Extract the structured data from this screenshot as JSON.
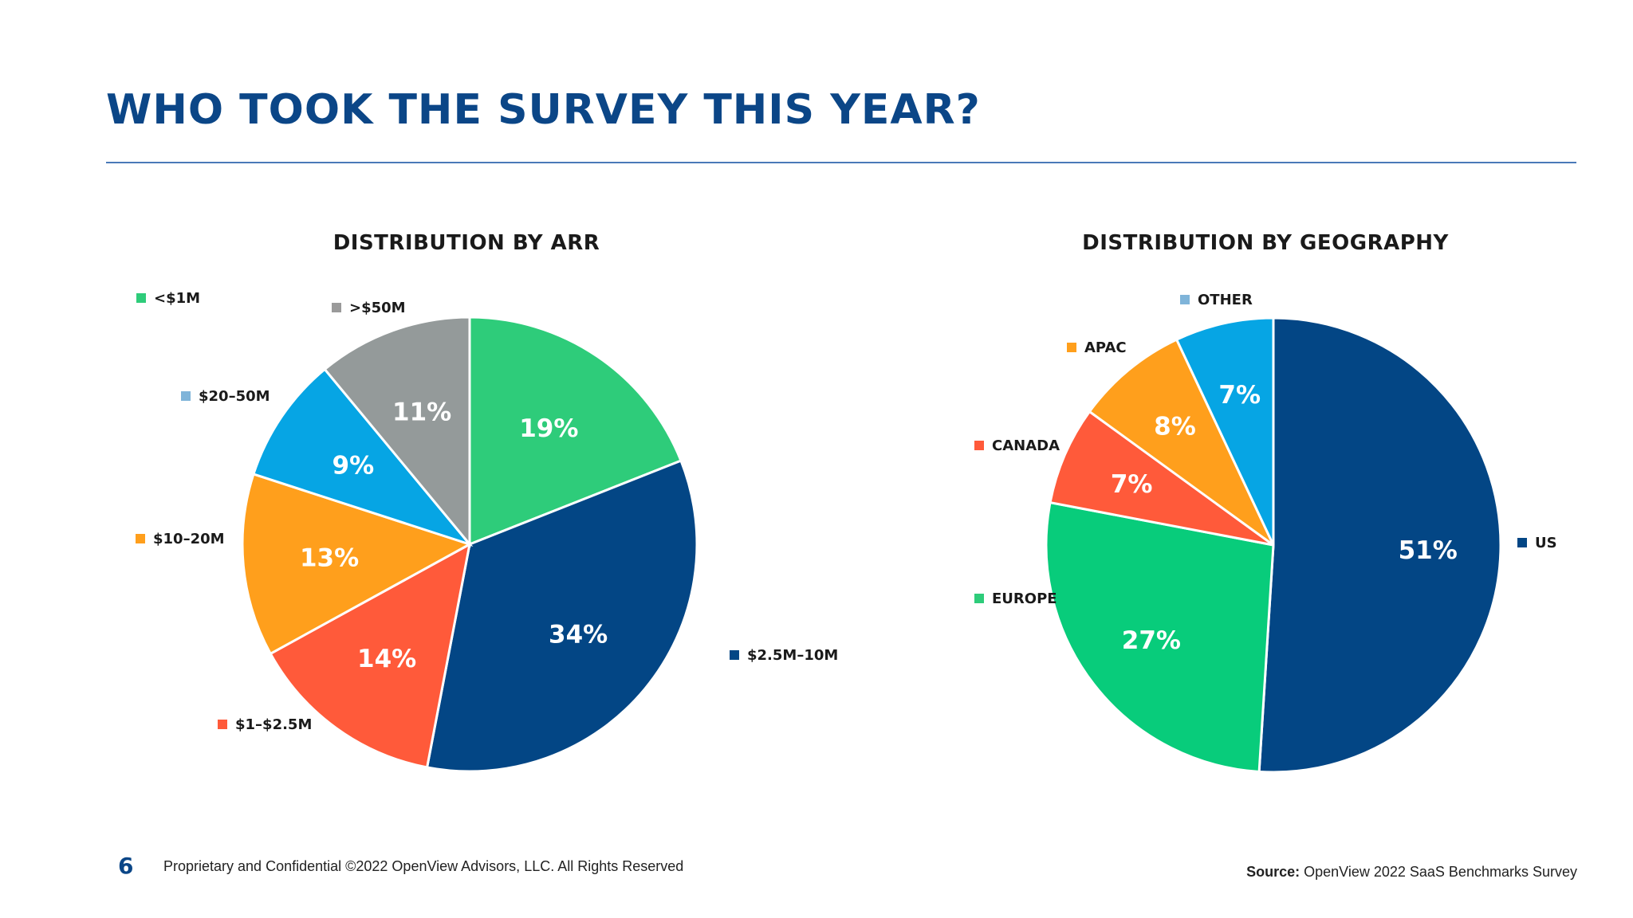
{
  "page": {
    "title": "WHO TOOK THE SURVEY THIS YEAR?",
    "page_number": "6",
    "footer": "Proprietary and Confidential ©2022 OpenView Advisors, LLC. All Rights Reserved",
    "source_label": "Source:",
    "source_text": "OpenView 2022 SaaS Benchmarks Survey"
  },
  "chart_data": [
    {
      "type": "pie",
      "title": "DISTRIBUTION BY ARR",
      "slices": [
        {
          "label": "<$1M",
          "value": 19,
          "display": "19%",
          "color": "#2ecc7a"
        },
        {
          "label": "$2.5M–10M",
          "value": 34,
          "display": "34%",
          "color": "#034685"
        },
        {
          "label": "$1–$2.5M",
          "value": 14,
          "display": "14%",
          "color": "#ff5a3a"
        },
        {
          "label": "$10–20M",
          "value": 13,
          "display": "13%",
          "color": "#ff9f1c"
        },
        {
          "label": "$20–50M",
          "value": 9,
          "display": "9%",
          "color": "#06a5e4"
        },
        {
          "label": ">$50M",
          "value": 11,
          "display": "11%",
          "color": "#949a9a"
        }
      ],
      "legend_colors": {
        "<$1M": "#2ecc7a",
        "$2.5M–10M": "#034685",
        "$1–$2.5M": "#ff5a3a",
        "$10–20M": "#ff9f1c",
        "$20–50M": "#7fb4d9",
        ">$50M": "#9a9a9a"
      }
    },
    {
      "type": "pie",
      "title": "DISTRIBUTION BY GEOGRAPHY",
      "slices": [
        {
          "label": "US",
          "value": 51,
          "display": "51%",
          "color": "#034685"
        },
        {
          "label": "EUROPE",
          "value": 27,
          "display": "27%",
          "color": "#08cc7b"
        },
        {
          "label": "CANADA",
          "value": 7,
          "display": "7%",
          "color": "#ff5a3a"
        },
        {
          "label": "APAC",
          "value": 8,
          "display": "8%",
          "color": "#ff9f1c"
        },
        {
          "label": "OTHER",
          "value": 7,
          "display": "7%",
          "color": "#06a5e4"
        }
      ],
      "legend_colors": {
        "US": "#034685",
        "EUROPE": "#2ecc7a",
        "CANADA": "#ff5a3a",
        "APAC": "#ff9f1c",
        "OTHER": "#7fb4d9"
      }
    }
  ]
}
